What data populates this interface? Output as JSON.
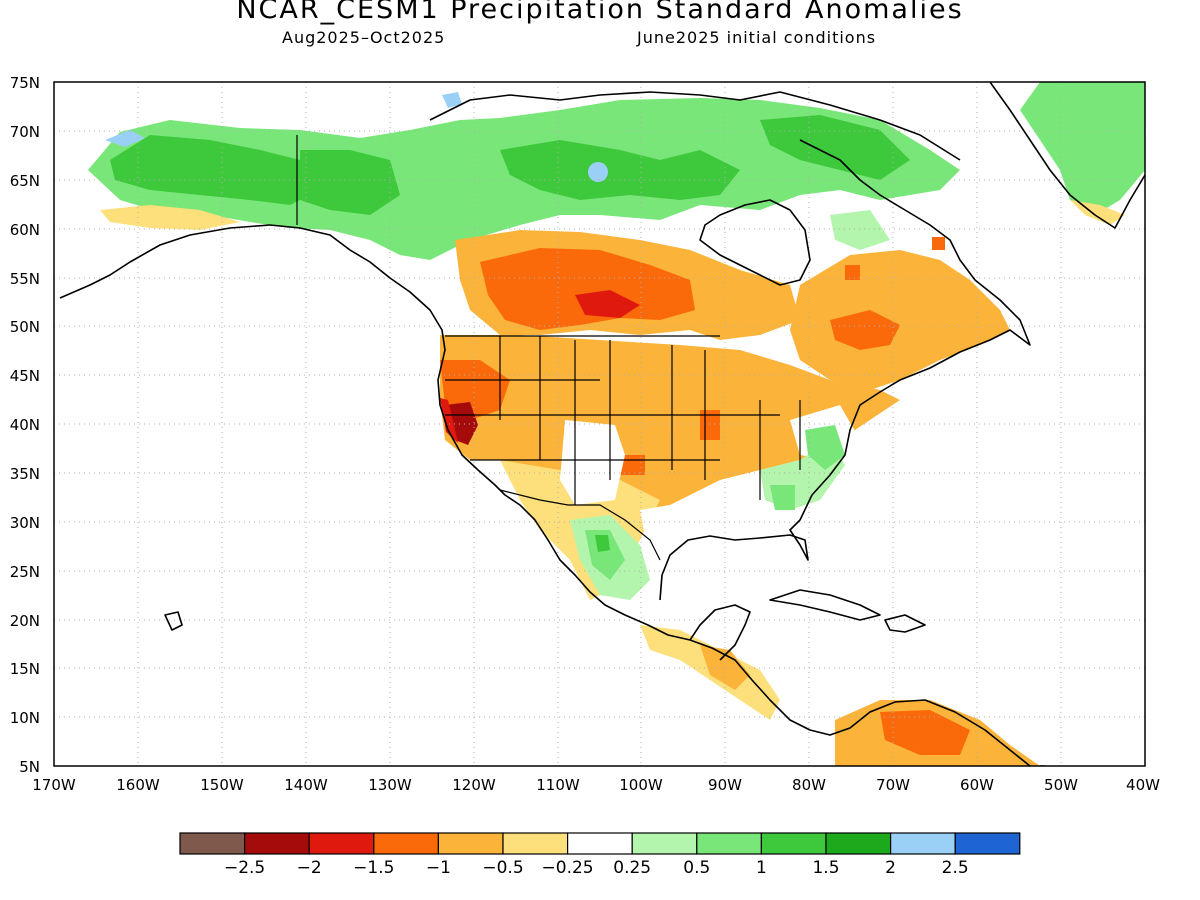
{
  "title": "NCAR_CESM1 Precipitation Standard Anomalies",
  "subtitle_left": "Aug2025–Oct2025",
  "subtitle_right": "June2025 initial conditions",
  "lat_ticks": [
    "75N",
    "70N",
    "65N",
    "60N",
    "55N",
    "50N",
    "45N",
    "40N",
    "35N",
    "30N",
    "25N",
    "20N",
    "15N",
    "10N",
    "5N"
  ],
  "lon_ticks": [
    "170W",
    "160W",
    "150W",
    "140W",
    "130W",
    "120W",
    "110W",
    "100W",
    "90W",
    "80W",
    "70W",
    "60W",
    "50W",
    "40W"
  ],
  "colorbar": {
    "colors": [
      "#7f5a4c",
      "#a50b0b",
      "#e0190f",
      "#fa6a0a",
      "#fbb33a",
      "#fde07c",
      "#ffffff",
      "#b3f5ad",
      "#78e678",
      "#3ec83c",
      "#1ca91c",
      "#9ad0f5",
      "#1e64d2"
    ],
    "labels": [
      "−2.5",
      "−2",
      "−1.5",
      "−1",
      "−0.5",
      "−0.25",
      "0.25",
      "0.5",
      "1",
      "1.5",
      "2",
      "2.5"
    ]
  },
  "colors": {
    "ocean": "#ffffff",
    "coast": "#000000",
    "grid": "#b0b0b0"
  }
}
